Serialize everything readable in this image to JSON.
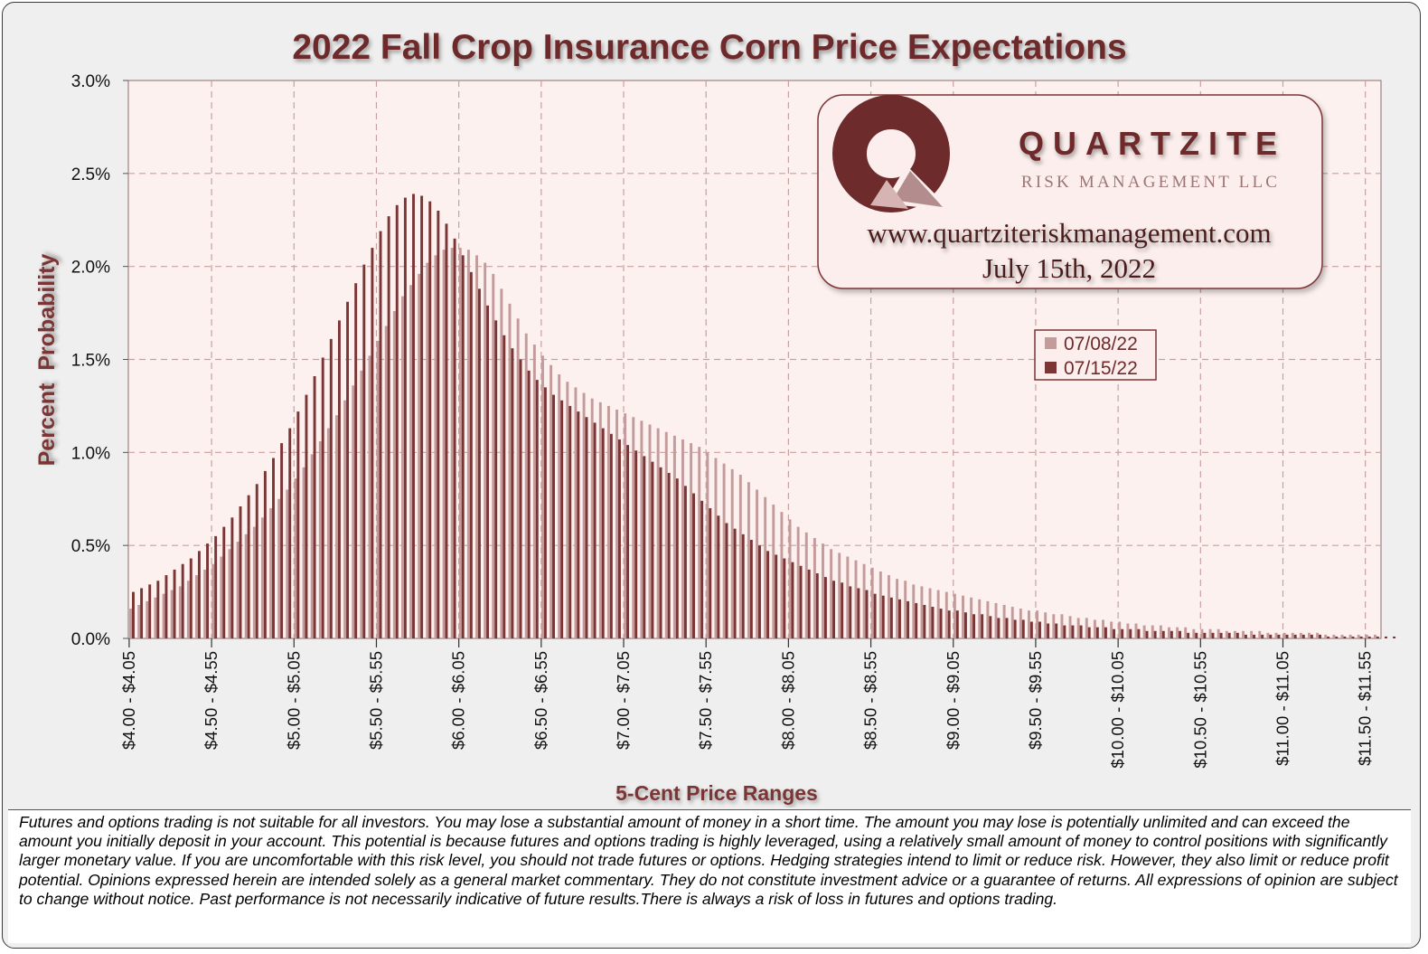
{
  "chart_data": {
    "type": "bar",
    "title": "2022 Fall Crop Insurance Corn Price Expectations",
    "xlabel": "5-Cent Price Ranges",
    "ylabel": "Percent  Probability",
    "ylim": [
      0,
      3.0
    ],
    "yticks": [
      "0.0%",
      "0.5%",
      "1.0%",
      "1.5%",
      "2.0%",
      "2.5%",
      "3.0%"
    ],
    "xtick_labels": [
      "$4.00 - $4.05",
      "$4.50 - $4.55",
      "$5.00 - $5.05",
      "$5.50 - $5.55",
      "$6.00 - $6.05",
      "$6.50 - $6.55",
      "$7.00 - $7.05",
      "$7.50 - $7.55",
      "$8.00 - $8.05",
      "$8.50 - $8.55",
      "$9.00 - $9.05",
      "$9.50 - $9.55",
      "$10.00 - $10.05",
      "$10.50 - $10.55",
      "$11.00 - $11.05",
      "$11.50 - $11.55"
    ],
    "grid": true,
    "legend_position": "top-right",
    "series": [
      {
        "name": "07/08/22",
        "color": "#c39b9b",
        "values": [
          0.16,
          0.18,
          0.2,
          0.22,
          0.24,
          0.26,
          0.28,
          0.31,
          0.34,
          0.37,
          0.4,
          0.44,
          0.48,
          0.52,
          0.56,
          0.6,
          0.65,
          0.7,
          0.75,
          0.8,
          0.86,
          0.92,
          0.99,
          1.06,
          1.13,
          1.2,
          1.28,
          1.36,
          1.44,
          1.52,
          1.6,
          1.68,
          1.76,
          1.84,
          1.9,
          1.96,
          2.02,
          2.06,
          2.09,
          2.1,
          2.1,
          2.09,
          2.06,
          2.02,
          1.96,
          1.88,
          1.8,
          1.72,
          1.64,
          1.58,
          1.52,
          1.47,
          1.42,
          1.38,
          1.35,
          1.32,
          1.29,
          1.27,
          1.25,
          1.23,
          1.21,
          1.19,
          1.17,
          1.15,
          1.13,
          1.11,
          1.09,
          1.07,
          1.05,
          1.03,
          1.0,
          0.97,
          0.94,
          0.91,
          0.88,
          0.84,
          0.8,
          0.76,
          0.72,
          0.68,
          0.64,
          0.6,
          0.57,
          0.54,
          0.51,
          0.48,
          0.46,
          0.44,
          0.42,
          0.4,
          0.38,
          0.36,
          0.34,
          0.32,
          0.31,
          0.29,
          0.28,
          0.27,
          0.26,
          0.25,
          0.24,
          0.23,
          0.22,
          0.21,
          0.2,
          0.19,
          0.18,
          0.17,
          0.16,
          0.15,
          0.15,
          0.14,
          0.13,
          0.13,
          0.12,
          0.11,
          0.11,
          0.1,
          0.1,
          0.09,
          0.09,
          0.08,
          0.08,
          0.07,
          0.07,
          0.07,
          0.06,
          0.06,
          0.06,
          0.05,
          0.05,
          0.05,
          0.05,
          0.04,
          0.04,
          0.04,
          0.04,
          0.04,
          0.03,
          0.03,
          0.03,
          0.03,
          0.03,
          0.03,
          0.03,
          0.02,
          0.02,
          0.02,
          0.02,
          0.02,
          0.02,
          0.02
        ]
      },
      {
        "name": "07/15/22",
        "color": "#7b3535",
        "values": [
          0.25,
          0.27,
          0.29,
          0.31,
          0.34,
          0.37,
          0.4,
          0.43,
          0.47,
          0.51,
          0.55,
          0.6,
          0.65,
          0.71,
          0.77,
          0.83,
          0.9,
          0.97,
          1.05,
          1.13,
          1.22,
          1.31,
          1.41,
          1.51,
          1.61,
          1.71,
          1.81,
          1.91,
          2.01,
          2.1,
          2.19,
          2.27,
          2.33,
          2.37,
          2.39,
          2.38,
          2.35,
          2.3,
          2.23,
          2.15,
          2.06,
          1.97,
          1.88,
          1.79,
          1.71,
          1.63,
          1.56,
          1.5,
          1.44,
          1.39,
          1.35,
          1.31,
          1.28,
          1.25,
          1.22,
          1.19,
          1.16,
          1.13,
          1.1,
          1.07,
          1.04,
          1.01,
          0.98,
          0.95,
          0.92,
          0.89,
          0.86,
          0.82,
          0.78,
          0.74,
          0.7,
          0.66,
          0.62,
          0.59,
          0.56,
          0.53,
          0.5,
          0.47,
          0.45,
          0.43,
          0.41,
          0.39,
          0.37,
          0.35,
          0.33,
          0.31,
          0.3,
          0.28,
          0.27,
          0.26,
          0.24,
          0.23,
          0.22,
          0.21,
          0.2,
          0.19,
          0.18,
          0.17,
          0.16,
          0.15,
          0.15,
          0.14,
          0.13,
          0.13,
          0.12,
          0.11,
          0.11,
          0.1,
          0.1,
          0.09,
          0.09,
          0.08,
          0.08,
          0.07,
          0.07,
          0.07,
          0.06,
          0.06,
          0.06,
          0.05,
          0.05,
          0.05,
          0.05,
          0.04,
          0.04,
          0.04,
          0.04,
          0.04,
          0.03,
          0.03,
          0.03,
          0.03,
          0.03,
          0.03,
          0.03,
          0.02,
          0.02,
          0.02,
          0.02,
          0.02,
          0.02,
          0.02,
          0.02,
          0.02,
          0.02,
          0.01,
          0.01,
          0.01,
          0.01,
          0.01,
          0.01,
          0.01,
          0.01,
          0.01
        ]
      }
    ]
  },
  "branding": {
    "name": "QUARTZITE",
    "subtitle": "RISK MANAGEMENT LLC",
    "website": "www.quartziteriskmanagement.com",
    "date": "July 15th, 2022"
  },
  "disclaimer": "Futures and options trading is not suitable for all investors. You may lose a substantial amount of money in a short time.  The amount you may lose is potentially unlimited and can exceed the amount you initially deposit in your account. This potential is because futures and options trading is highly leveraged, using a relatively small amount of money to control positions with significantly larger monetary value. If you are uncomfortable with this risk level, you should not trade futures or options. Hedging strategies intend to limit or reduce risk. However, they also limit or reduce profit potential. Opinions expressed herein are intended solely as a general market commentary. They do not constitute investment advice or a guarantee of returns. All expressions of opinion are subject to change without notice. Past performance is not necessarily indicative of future results.There is always a risk of loss in futures and options trading.",
  "colors": {
    "title": "#6e2b2b",
    "plot_bg": "#fdf1ef",
    "grid": "#c9a0a0",
    "series_old": "#c39b9b",
    "series_new": "#7b3535"
  }
}
